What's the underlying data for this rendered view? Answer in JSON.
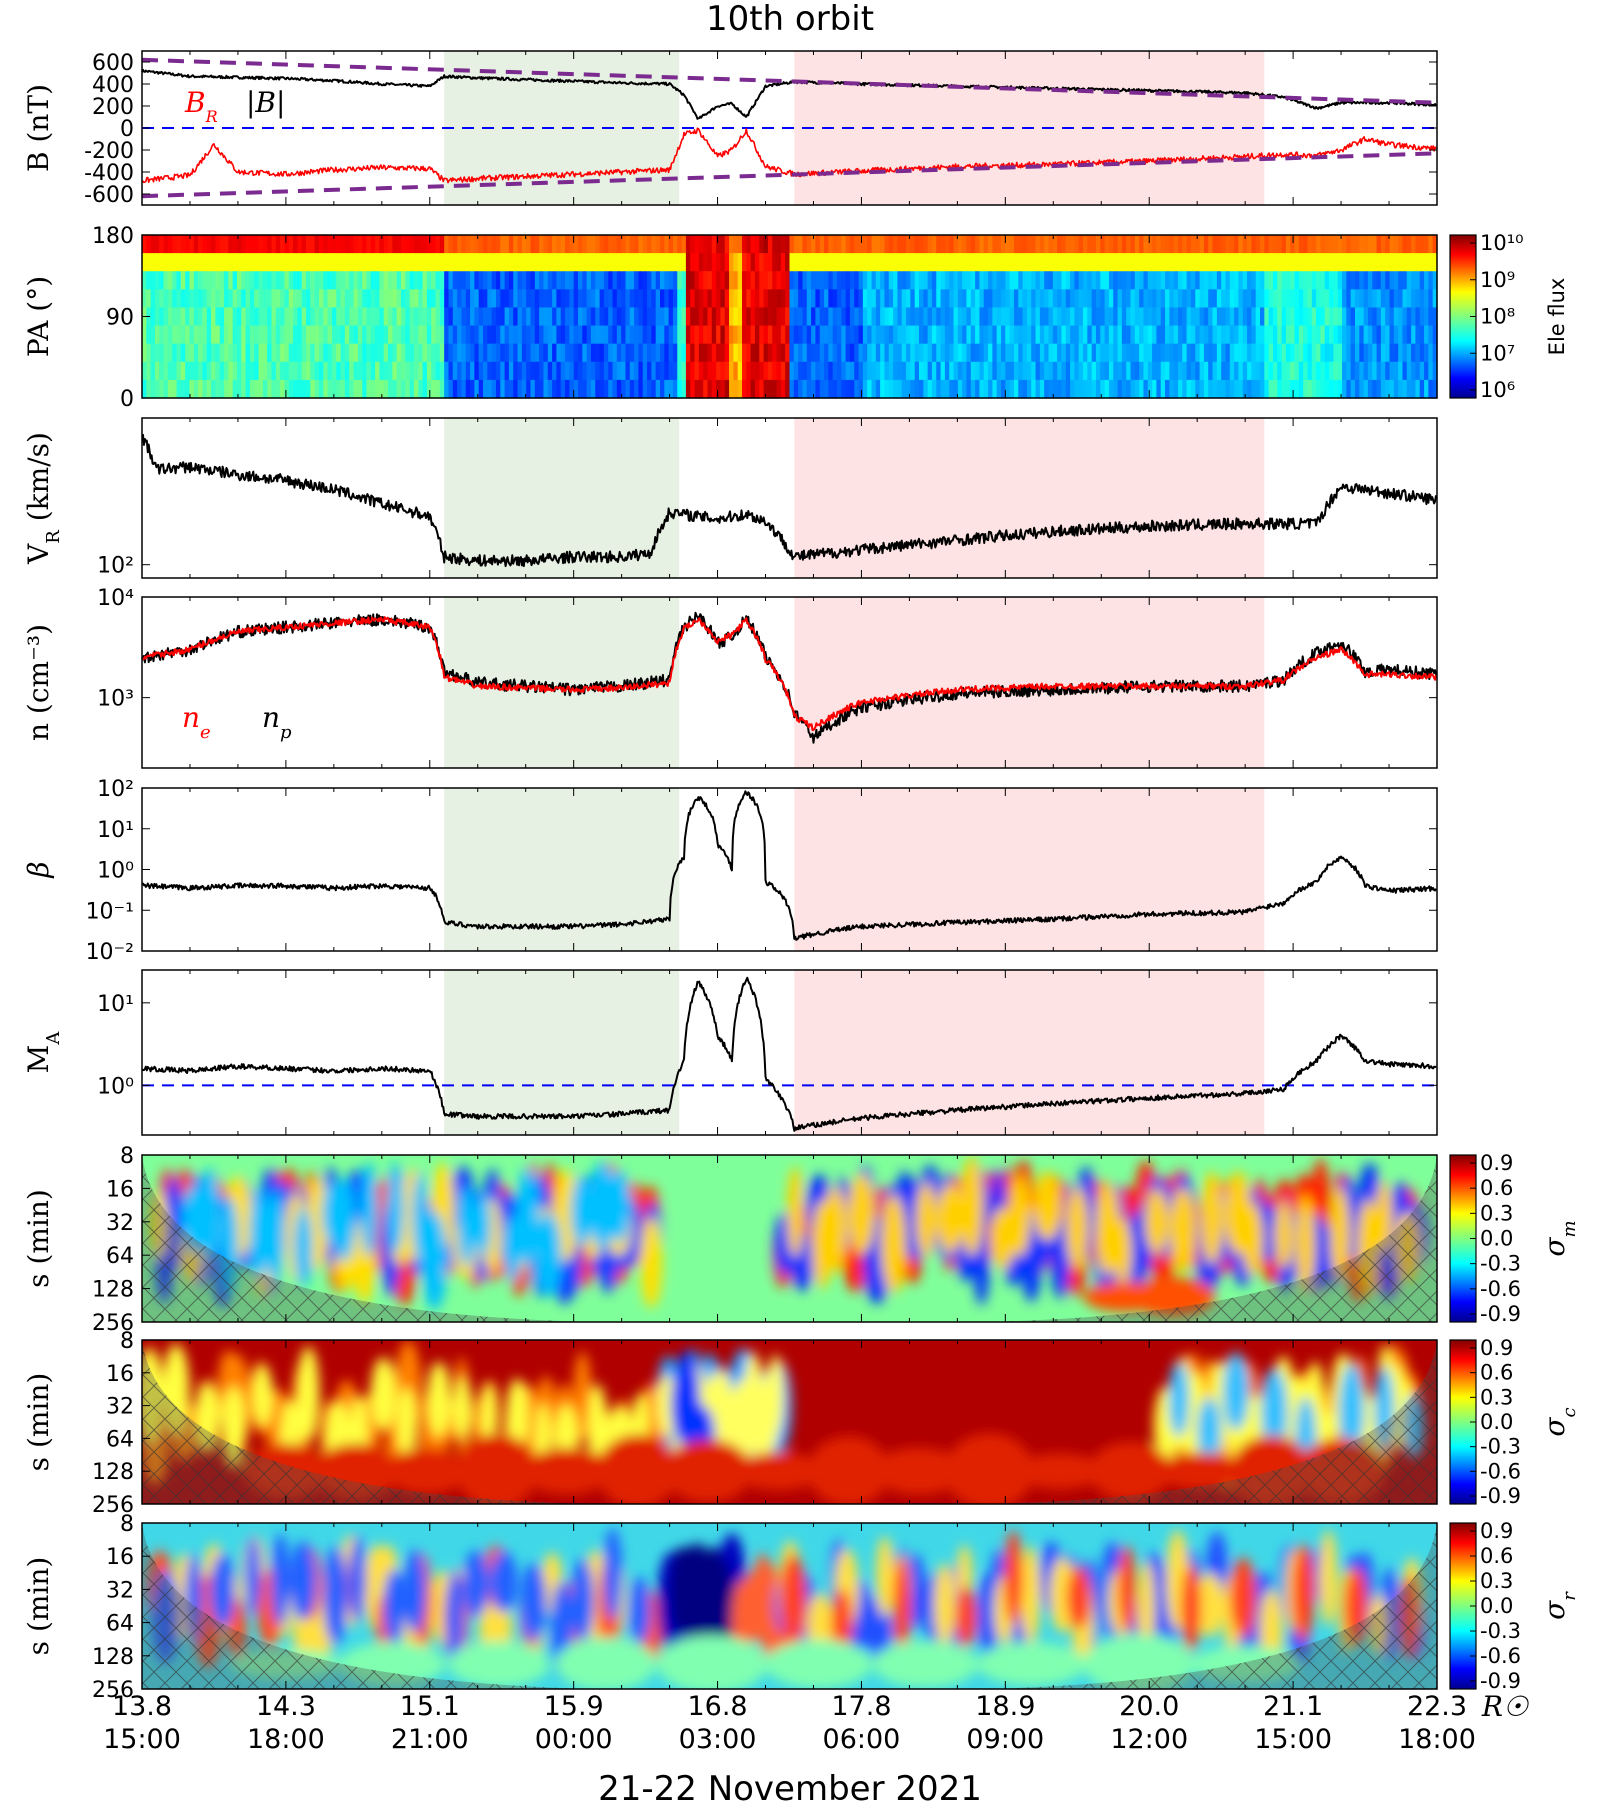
{
  "title": "10th orbit",
  "x_axis": {
    "distance_ticks": [
      "13.8",
      "14.3",
      "15.1",
      "15.9",
      "16.8",
      "17.8",
      "18.9",
      "20.0",
      "21.1",
      "22.3"
    ],
    "time_ticks": [
      "15:00",
      "18:00",
      "21:00",
      "00:00",
      "03:00",
      "06:00",
      "09:00",
      "12:00",
      "15:00",
      "18:00"
    ],
    "distance_unit": "R☉",
    "xlabel": "21-22 November 2021",
    "hours_start": 15,
    "hours_end": 42
  },
  "shading": {
    "green": {
      "color": "#e6f0e3",
      "start_hour": 21.3,
      "end_hour": 26.2
    },
    "pink": {
      "color": "#fde3e3",
      "start_hour": 28.6,
      "end_hour": 38.4
    }
  },
  "colors": {
    "black": "#000000",
    "red": "#ff0000",
    "purple": "#7b2a8f",
    "blue_dash": "#0000ff"
  },
  "chart_data": [
    {
      "type": "line",
      "panel": "B",
      "ylabel": "B (nT)",
      "y_ticks": [
        "600",
        "400",
        "200",
        "0",
        "-200",
        "-400",
        "-600"
      ],
      "ylim": [
        -700,
        700
      ],
      "legend": {
        "br": "B",
        "br_sub": "R",
        "absb": "|B|"
      },
      "series": [
        {
          "name": "|B|",
          "x": [
            15,
            16,
            17,
            18,
            19,
            20,
            21,
            21.3,
            22,
            23,
            24,
            25,
            26,
            26.3,
            26.6,
            27,
            27.3,
            27.6,
            28,
            28.6,
            30,
            32,
            34,
            36,
            38,
            38.8,
            39.5,
            40,
            41,
            42
          ],
          "y": [
            520,
            470,
            460,
            450,
            430,
            400,
            380,
            470,
            455,
            440,
            425,
            410,
            400,
            300,
            80,
            200,
            220,
            100,
            380,
            420,
            400,
            380,
            360,
            340,
            320,
            280,
            180,
            230,
            230,
            210
          ]
        },
        {
          "name": "B_R",
          "x": [
            15,
            16,
            16.5,
            17,
            18,
            19,
            20,
            21,
            21.3,
            22,
            23,
            24,
            25,
            26,
            26.3,
            26.6,
            27,
            27.3,
            27.6,
            28,
            28.6,
            30,
            32,
            34,
            36,
            38,
            38.8,
            39.5,
            40,
            40.5,
            41,
            42
          ],
          "y": [
            -480,
            -430,
            -150,
            -400,
            -420,
            -380,
            -360,
            -370,
            -480,
            -460,
            -440,
            -420,
            -400,
            -380,
            -60,
            -20,
            -260,
            -200,
            -20,
            -350,
            -420,
            -390,
            -350,
            -330,
            -300,
            -260,
            -240,
            -250,
            -200,
            -100,
            -150,
            -190
          ]
        }
      ],
      "envelope": {
        "upper": [
          620,
          230
        ],
        "lower": [
          -620,
          -230
        ]
      }
    },
    {
      "type": "heatmap",
      "panel": "PA",
      "ylabel": "PA (°)",
      "y_ticks": [
        "180",
        "90",
        "0"
      ],
      "ylim": [
        0,
        180
      ],
      "colorbar_ticks": [
        "10¹⁰",
        "10⁹",
        "10⁸",
        "10⁷",
        "10⁶"
      ],
      "colorbar_label": "Ele flux"
    },
    {
      "type": "line",
      "panel": "VR",
      "ylabel": "V_R (km/s)",
      "y_ticks": [
        "10²"
      ],
      "y_scale": "log",
      "ylim": [
        85,
        600
      ],
      "series": [
        {
          "name": "V_R",
          "x": [
            15,
            15.3,
            16,
            17,
            18,
            19,
            20,
            21,
            21.3,
            22,
            23,
            24,
            25,
            25.6,
            26,
            26.6,
            27,
            27.6,
            28,
            28.6,
            30,
            32,
            34,
            36,
            38,
            39.5,
            40,
            41,
            42
          ],
          "y": [
            480,
            320,
            330,
            300,
            280,
            250,
            210,
            180,
            110,
            105,
            105,
            110,
            110,
            115,
            190,
            180,
            175,
            185,
            170,
            110,
            120,
            135,
            150,
            160,
            165,
            165,
            260,
            240,
            220
          ]
        }
      ]
    },
    {
      "type": "line",
      "panel": "n",
      "ylabel": "n (cm⁻³)",
      "y_ticks": [
        "10⁴",
        "10³"
      ],
      "y_scale": "log",
      "ylim": [
        200,
        10000
      ],
      "legend": {
        "ne": "n",
        "ne_sub": "e",
        "np": "n",
        "np_sub": "p"
      },
      "series": [
        {
          "name": "n_p",
          "x": [
            15,
            16,
            17,
            18,
            19,
            20,
            21,
            21.3,
            22,
            23,
            24,
            25,
            26,
            26.3,
            26.6,
            27,
            27.3,
            27.6,
            28,
            28.6,
            29,
            30,
            32,
            34,
            36,
            38,
            38.8,
            39.5,
            40,
            40.5,
            41,
            42
          ],
          "y": [
            2500,
            3000,
            4500,
            5000,
            5500,
            6000,
            5000,
            1800,
            1400,
            1300,
            1200,
            1300,
            1500,
            5000,
            6500,
            3500,
            4000,
            6000,
            2500,
            700,
            400,
            800,
            1100,
            1200,
            1300,
            1300,
            1500,
            2800,
            3500,
            1800,
            1900,
            1700
          ]
        },
        {
          "name": "n_e",
          "x": [
            15,
            16,
            17,
            18,
            19,
            20,
            21,
            21.3,
            22,
            23,
            24,
            25,
            26,
            26.3,
            26.6,
            27,
            27.3,
            27.6,
            28,
            28.6,
            29,
            30,
            32,
            34,
            36,
            38,
            38.8,
            39.5,
            40,
            40.5,
            41,
            42
          ],
          "y": [
            2500,
            3000,
            4500,
            5000,
            5500,
            6000,
            5000,
            1600,
            1300,
            1250,
            1200,
            1250,
            1400,
            4800,
            6000,
            3600,
            4200,
            5800,
            2400,
            650,
            500,
            900,
            1200,
            1300,
            1300,
            1300,
            1500,
            2500,
            3000,
            1700,
            1700,
            1600
          ]
        }
      ]
    },
    {
      "type": "line",
      "panel": "beta",
      "ylabel": "β",
      "y_ticks": [
        "10²",
        "10¹",
        "10⁰",
        "10⁻¹",
        "10⁻²"
      ],
      "y_scale": "log",
      "ylim": [
        0.01,
        100
      ],
      "series": [
        {
          "name": "β",
          "x": [
            15,
            16,
            17,
            18,
            19,
            20,
            21,
            21.3,
            22,
            23,
            24,
            25,
            26,
            26.3,
            26.6,
            27,
            27.3,
            27.6,
            28,
            28.6,
            30,
            32,
            34,
            36,
            38,
            38.8,
            39.5,
            40,
            40.5,
            41,
            42
          ],
          "y": [
            0.4,
            0.35,
            0.4,
            0.4,
            0.35,
            0.4,
            0.35,
            0.05,
            0.04,
            0.04,
            0.04,
            0.045,
            0.06,
            2,
            60,
            4,
            1,
            80,
            0.5,
            0.02,
            0.04,
            0.05,
            0.06,
            0.08,
            0.09,
            0.15,
            0.5,
            2,
            0.4,
            0.3,
            0.35
          ]
        }
      ]
    },
    {
      "type": "line",
      "panel": "MA",
      "ylabel": "M_A",
      "y_ticks": [
        "10¹",
        "10⁰"
      ],
      "y_scale": "log",
      "ylim": [
        0.25,
        25
      ],
      "reference_line": 1,
      "series": [
        {
          "name": "M_A",
          "x": [
            15,
            16,
            17,
            18,
            19,
            20,
            21,
            21.3,
            22,
            23,
            24,
            25,
            26,
            26.3,
            26.6,
            27,
            27.3,
            27.6,
            28,
            28.6,
            30,
            32,
            34,
            36,
            38,
            38.8,
            39.5,
            40,
            40.5,
            41,
            42
          ],
          "y": [
            1.6,
            1.5,
            1.7,
            1.6,
            1.5,
            1.6,
            1.5,
            0.45,
            0.42,
            0.42,
            0.42,
            0.45,
            0.5,
            2,
            18,
            4,
            2,
            20,
            1.2,
            0.3,
            0.4,
            0.5,
            0.6,
            0.7,
            0.8,
            0.9,
            2,
            4,
            2,
            1.8,
            1.7
          ]
        }
      ]
    },
    {
      "type": "heatmap",
      "panel": "sigma_m",
      "ylabel": "s (min)",
      "y_ticks": [
        "8",
        "16",
        "32",
        "64",
        "128",
        "256"
      ],
      "colorbar_ticks": [
        "0.9",
        "0.6",
        "0.3",
        "0.0",
        "-0.3",
        "-0.6",
        "-0.9"
      ],
      "colorbar_label": "σ",
      "colorbar_sub": "m"
    },
    {
      "type": "heatmap",
      "panel": "sigma_c",
      "ylabel": "s (min)",
      "y_ticks": [
        "8",
        "16",
        "32",
        "64",
        "128",
        "256"
      ],
      "colorbar_ticks": [
        "0.9",
        "0.6",
        "0.3",
        "0.0",
        "-0.3",
        "-0.6",
        "-0.9"
      ],
      "colorbar_label": "σ",
      "colorbar_sub": "c"
    },
    {
      "type": "heatmap",
      "panel": "sigma_r",
      "ylabel": "s (min)",
      "y_ticks": [
        "8",
        "16",
        "32",
        "64",
        "128",
        "256"
      ],
      "colorbar_ticks": [
        "0.9",
        "0.6",
        "0.3",
        "0.0",
        "-0.3",
        "-0.6",
        "-0.9"
      ],
      "colorbar_label": "σ",
      "colorbar_sub": "r"
    }
  ]
}
